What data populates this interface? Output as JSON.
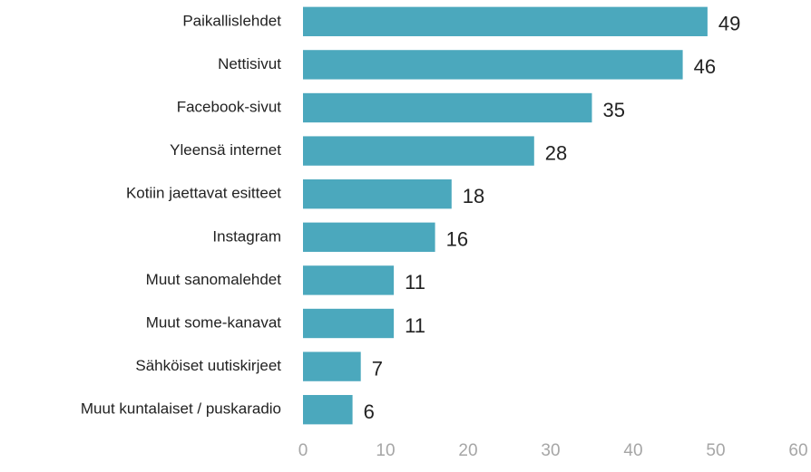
{
  "chart_data": {
    "type": "bar",
    "orientation": "horizontal",
    "categories": [
      "Paikallislehdet",
      "Nettisivut",
      "Facebook-sivut",
      "Yleensä internet",
      "Kotiin jaettavat esitteet",
      "Instagram",
      "Muut sanomalehdet",
      "Muut some-kanavat",
      "Sähköiset uutiskirjeet",
      "Muut kuntalaiset / puskaradio"
    ],
    "values": [
      49,
      46,
      35,
      28,
      18,
      16,
      11,
      11,
      7,
      6
    ],
    "color": "#4ba8bd",
    "xlim": [
      0,
      60
    ],
    "xticks": [
      0,
      10,
      20,
      30,
      40,
      50,
      60
    ],
    "grid": false
  }
}
